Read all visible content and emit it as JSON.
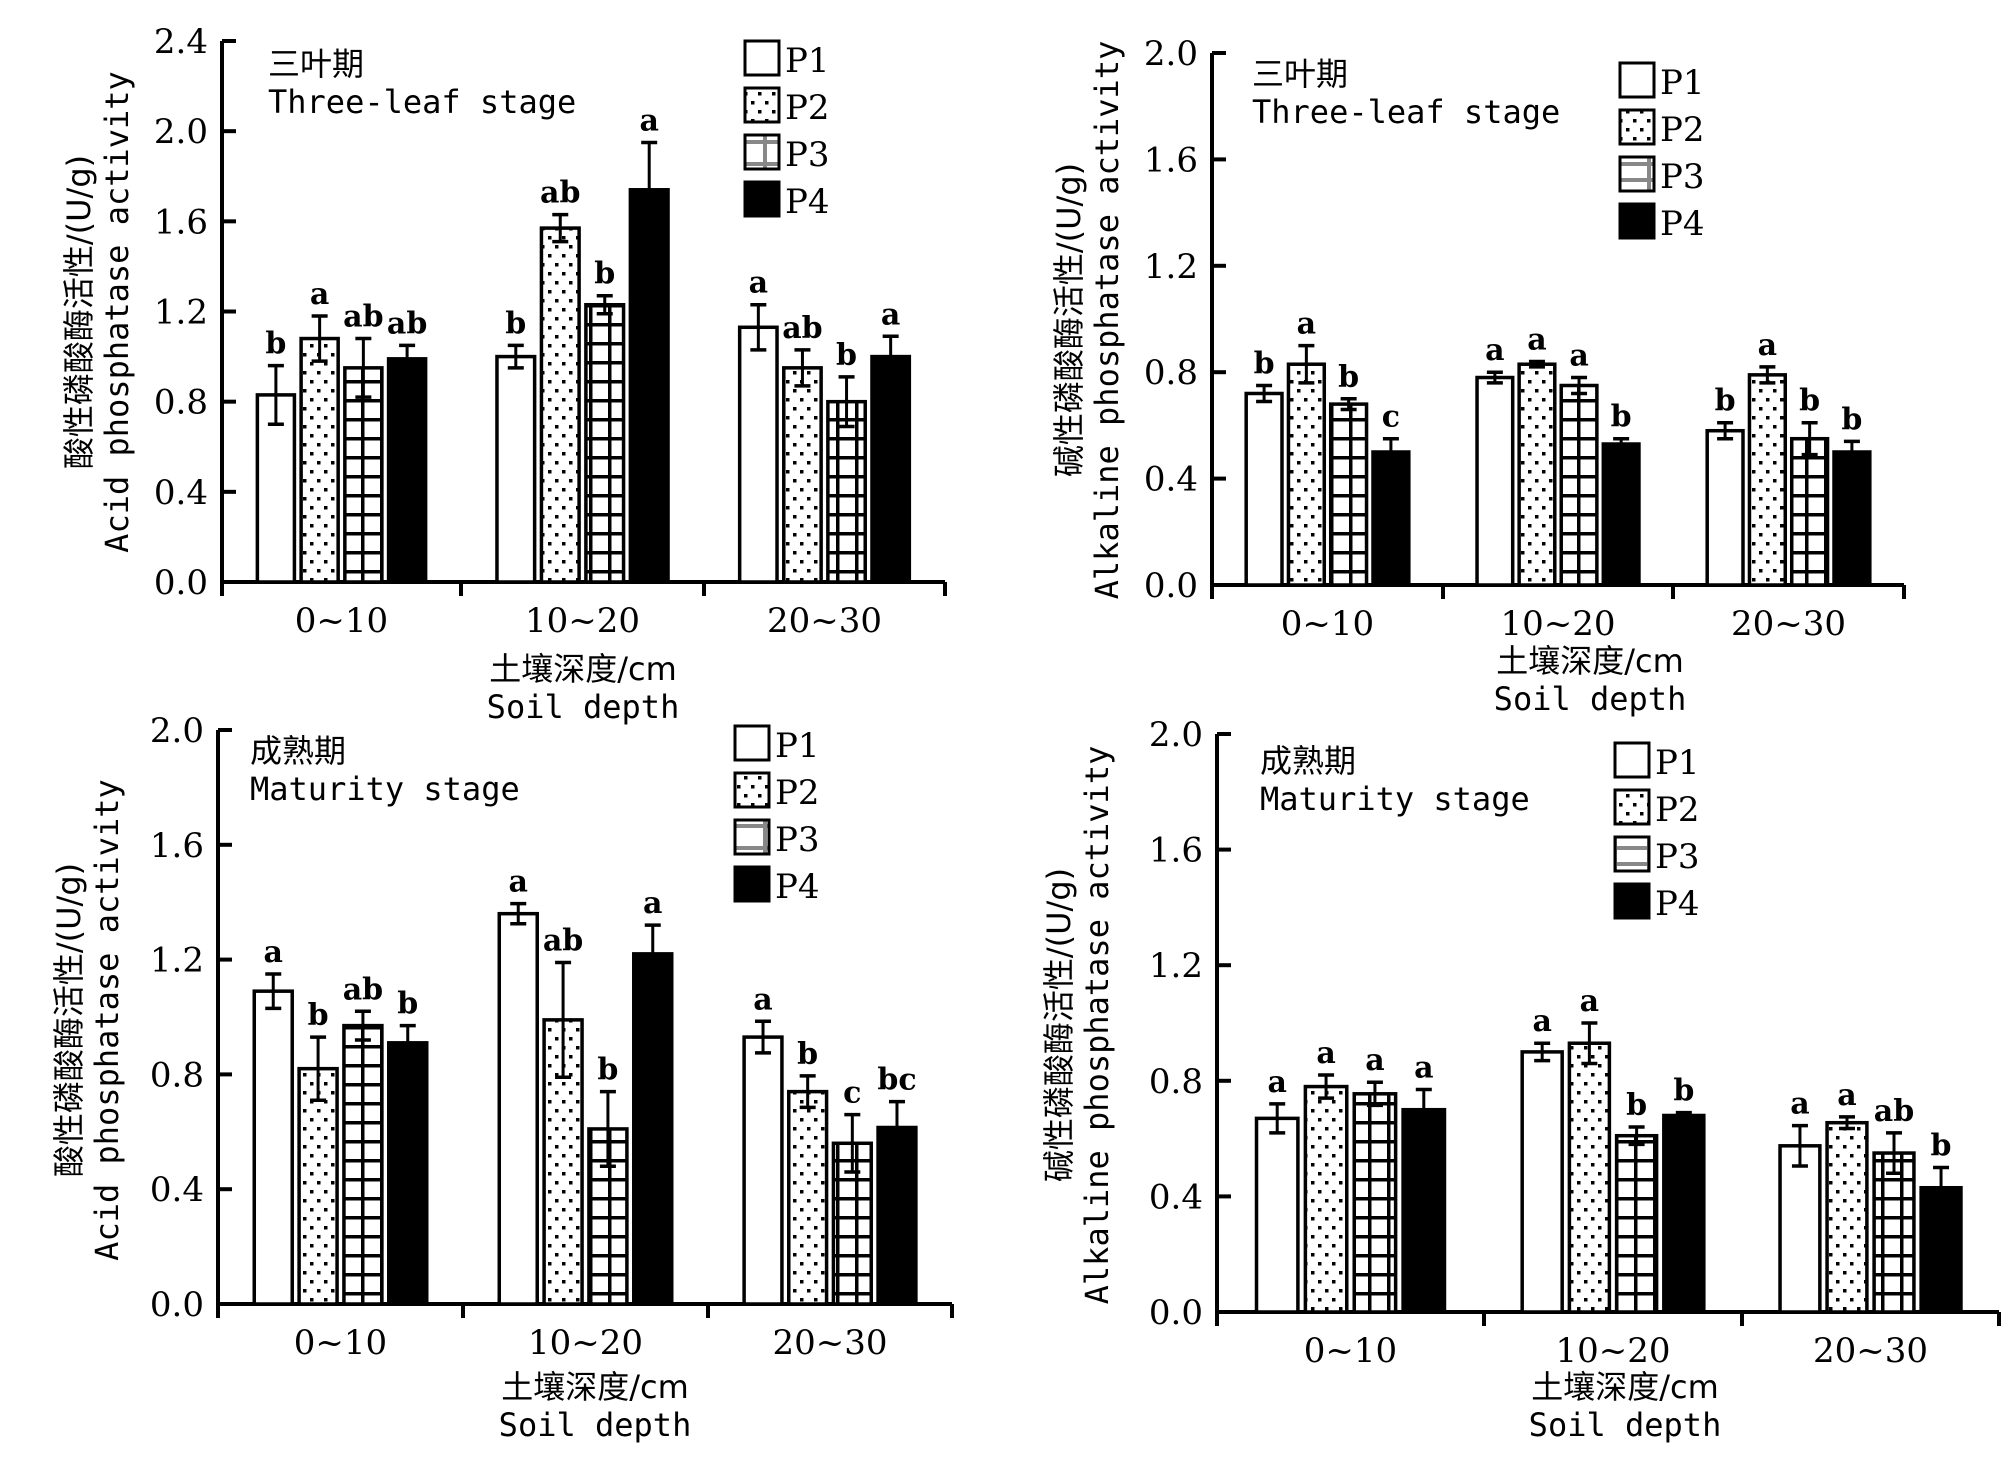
{
  "figure": {
    "legend_items": [
      "P1",
      "P2",
      "P3",
      "P4"
    ],
    "x_title_cn": "土壤深度/cm",
    "x_title_en": "Soil depth"
  },
  "chart_data": [
    {
      "id": "acid-three-leaf",
      "type": "bar",
      "stage_cn": "三叶期",
      "stage_en": "Three-leaf stage",
      "ylabel_cn": "酸性磷酸酶活性/(U/g)",
      "ylabel_en": "Acid phosphatase activity",
      "xlabel_cn": "土壤深度/cm",
      "xlabel_en": "Soil depth",
      "categories": [
        "0~10",
        "10~20",
        "20~30"
      ],
      "ylim": [
        0,
        2.4
      ],
      "yticks": [
        "0.0",
        "0.4",
        "0.8",
        "1.2",
        "1.6",
        "2.0",
        "2.4"
      ],
      "legend": "top-right",
      "grid": false,
      "series": [
        {
          "name": "P1",
          "values": [
            0.83,
            1.0,
            1.13
          ],
          "errors": [
            0.13,
            0.05,
            0.1
          ],
          "letters": [
            "b",
            "b",
            "a"
          ]
        },
        {
          "name": "P2",
          "values": [
            1.08,
            1.57,
            0.95
          ],
          "errors": [
            0.1,
            0.06,
            0.08
          ],
          "letters": [
            "a",
            "ab",
            "ab"
          ]
        },
        {
          "name": "P3",
          "values": [
            0.95,
            1.23,
            0.8
          ],
          "errors": [
            0.13,
            0.04,
            0.11
          ],
          "letters": [
            "ab",
            "b",
            "b"
          ]
        },
        {
          "name": "P4",
          "values": [
            0.99,
            1.74,
            1.0
          ],
          "errors": [
            0.06,
            0.21,
            0.09
          ],
          "letters": [
            "ab",
            "a",
            "a"
          ]
        }
      ]
    },
    {
      "id": "alkaline-three-leaf",
      "type": "bar",
      "stage_cn": "三叶期",
      "stage_en": "Three-leaf stage",
      "ylabel_cn": "碱性磷酸酶活性/(U/g)",
      "ylabel_en": "Alkaline phosphatase activity",
      "xlabel_cn": "土壤深度/cm",
      "xlabel_en": "Soil depth",
      "categories": [
        "0~10",
        "10~20",
        "20~30"
      ],
      "ylim": [
        0,
        2.0
      ],
      "yticks": [
        "0.0",
        "0.4",
        "0.8",
        "1.2",
        "1.6",
        "2.0"
      ],
      "legend": "top-right",
      "grid": false,
      "series": [
        {
          "name": "P1",
          "values": [
            0.72,
            0.78,
            0.58
          ],
          "errors": [
            0.03,
            0.02,
            0.03
          ],
          "letters": [
            "b",
            "a",
            "b"
          ]
        },
        {
          "name": "P2",
          "values": [
            0.83,
            0.83,
            0.79
          ],
          "errors": [
            0.07,
            0.01,
            0.03
          ],
          "letters": [
            "a",
            "a",
            "a"
          ]
        },
        {
          "name": "P3",
          "values": [
            0.68,
            0.75,
            0.55
          ],
          "errors": [
            0.02,
            0.03,
            0.06
          ],
          "letters": [
            "b",
            "a",
            "b"
          ]
        },
        {
          "name": "P4",
          "values": [
            0.5,
            0.53,
            0.5
          ],
          "errors": [
            0.05,
            0.02,
            0.04
          ],
          "letters": [
            "c",
            "b",
            "b"
          ]
        }
      ]
    },
    {
      "id": "acid-maturity",
      "type": "bar",
      "stage_cn": "成熟期",
      "stage_en": "Maturity stage",
      "ylabel_cn": "酸性磷酸酶活性/(U/g)",
      "ylabel_en": "Acid phosphatase activity",
      "xlabel_cn": "土壤深度/cm",
      "xlabel_en": "Soil depth",
      "categories": [
        "0~10",
        "10~20",
        "20~30"
      ],
      "ylim": [
        0,
        2.0
      ],
      "yticks": [
        "0.0",
        "0.4",
        "0.8",
        "1.2",
        "1.6",
        "2.0"
      ],
      "legend": "top-right",
      "grid": false,
      "series": [
        {
          "name": "P1",
          "values": [
            1.09,
            1.36,
            0.93
          ],
          "errors": [
            0.06,
            0.035,
            0.055
          ],
          "letters": [
            "a",
            "a",
            "a"
          ]
        },
        {
          "name": "P2",
          "values": [
            0.82,
            0.99,
            0.74
          ],
          "errors": [
            0.11,
            0.2,
            0.055
          ],
          "letters": [
            "b",
            "ab",
            "b"
          ]
        },
        {
          "name": "P3",
          "values": [
            0.97,
            0.61,
            0.56
          ],
          "errors": [
            0.05,
            0.13,
            0.1
          ],
          "letters": [
            "ab",
            "b",
            "c"
          ]
        },
        {
          "name": "P4",
          "values": [
            0.91,
            1.22,
            0.615
          ],
          "errors": [
            0.06,
            0.1,
            0.09
          ],
          "letters": [
            "b",
            "a",
            "bc"
          ]
        }
      ]
    },
    {
      "id": "alkaline-maturity",
      "type": "bar",
      "stage_cn": "成熟期",
      "stage_en": "Maturity stage",
      "ylabel_cn": "碱性磷酸酶活性/(U/g)",
      "ylabel_en": "Alkaline phosphatase activity",
      "xlabel_cn": "土壤深度/cm",
      "xlabel_en": "Soil depth",
      "categories": [
        "0~10",
        "10~20",
        "20~30"
      ],
      "ylim": [
        0,
        2.0
      ],
      "yticks": [
        "0.0",
        "0.4",
        "0.8",
        "1.2",
        "1.6",
        "2.0"
      ],
      "legend": "top-right",
      "grid": false,
      "series": [
        {
          "name": "P1",
          "values": [
            0.67,
            0.9,
            0.575
          ],
          "errors": [
            0.05,
            0.03,
            0.07
          ],
          "letters": [
            "a",
            "a",
            "a"
          ]
        },
        {
          "name": "P2",
          "values": [
            0.78,
            0.93,
            0.655
          ],
          "errors": [
            0.04,
            0.07,
            0.02
          ],
          "letters": [
            "a",
            "a",
            "a"
          ]
        },
        {
          "name": "P3",
          "values": [
            0.755,
            0.61,
            0.55
          ],
          "errors": [
            0.04,
            0.03,
            0.07
          ],
          "letters": [
            "a",
            "b",
            "ab"
          ]
        },
        {
          "name": "P4",
          "values": [
            0.7,
            0.68,
            0.43
          ],
          "errors": [
            0.07,
            0.01,
            0.07
          ],
          "letters": [
            "a",
            "b",
            "b"
          ]
        }
      ]
    }
  ]
}
